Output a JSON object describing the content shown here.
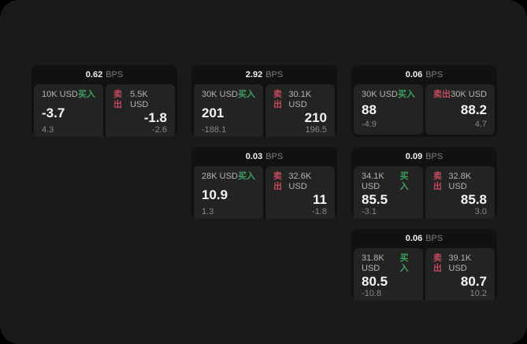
{
  "labels": {
    "bps_unit": "BPS",
    "buy": "买入",
    "sell": "卖出"
  },
  "colors": {
    "buy_green": "#3da05f",
    "sell_red": "#c14a5c",
    "page_bg": "#1a1a1a",
    "card_bg": "#111112",
    "tile_bg": "#232323"
  },
  "cards": [
    {
      "col": 1,
      "row": 1,
      "bps": "0.62",
      "buy": {
        "amount": "10K USD",
        "price": "-3.7",
        "delta": "4.3"
      },
      "sell": {
        "amount": "5.5K USD",
        "price": "-1.8",
        "delta": "-2.6"
      }
    },
    {
      "col": 2,
      "row": 1,
      "bps": "2.92",
      "buy": {
        "amount": "30K USD",
        "price": "201",
        "delta": "-188.1"
      },
      "sell": {
        "amount": "30.1K USD",
        "price": "210",
        "delta": "196.5"
      }
    },
    {
      "col": 3,
      "row": 1,
      "bps": "0.06",
      "buy": {
        "amount": "30K USD",
        "price": "88",
        "delta": "-4.9"
      },
      "sell": {
        "amount": "30K USD",
        "price": "88.2",
        "delta": "4.7"
      }
    },
    {
      "col": 2,
      "row": 2,
      "bps": "0.03",
      "buy": {
        "amount": "28K USD",
        "price": "10.9",
        "delta": "1.3"
      },
      "sell": {
        "amount": "32.6K USD",
        "price": "11",
        "delta": "-1.8"
      }
    },
    {
      "col": 3,
      "row": 2,
      "bps": "0.09",
      "buy": {
        "amount": "34.1K USD",
        "price": "85.5",
        "delta": "-3.1"
      },
      "sell": {
        "amount": "32.8K USD",
        "price": "85.8",
        "delta": "3.0"
      }
    },
    {
      "col": 3,
      "row": 3,
      "bps": "0.06",
      "buy": {
        "amount": "31.8K USD",
        "price": "80.5",
        "delta": "-10.8"
      },
      "sell": {
        "amount": "39.1K USD",
        "price": "80.7",
        "delta": "10.2"
      }
    }
  ]
}
